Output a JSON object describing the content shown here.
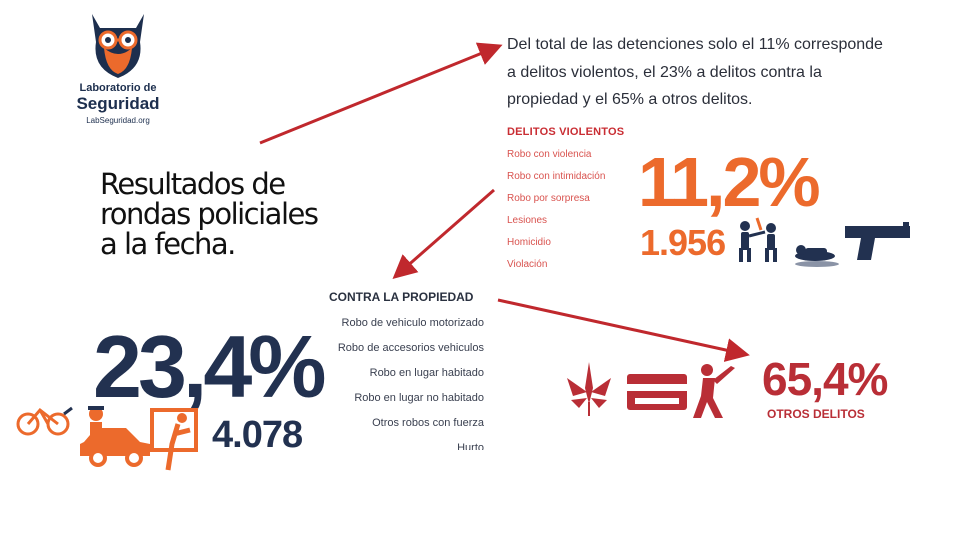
{
  "logo": {
    "line1": "Laboratorio de",
    "line2": "Seguridad",
    "line3": "LabSeguridad.org"
  },
  "title": {
    "line1": "Resultados de",
    "line2": "rondas policiales",
    "line3": "a la fecha."
  },
  "intro": {
    "line1": "Del total de las detenciones solo el 11% corresponde",
    "line2": "a delitos violentos, el 23% a delitos contra la",
    "line3": "propiedad y el 65% a otros delitos."
  },
  "violentos": {
    "heading": "DELITOS   VIOLENTOS",
    "items": [
      "Robo  con violencia",
      "Robo  con intimidación",
      "Robo  por sorpresa",
      "Lesiones",
      "Homicidio",
      "Violación"
    ],
    "percent": "11,2%",
    "count": "1.956"
  },
  "propiedad": {
    "heading": "CONTRA LA PROPIEDAD",
    "items": [
      "Robo de vehiculo motorizado",
      "Robo de accesorios vehiculos",
      "Robo  en lugar habitado",
      "Robo    en lugar no habitado",
      "Otros robos con fuerza",
      "Hurto"
    ],
    "percent": "23,4%",
    "count": "4.078"
  },
  "otros": {
    "percent": "65,4%",
    "label": "OTROS DELITOS"
  },
  "colors": {
    "orange": "#ec6a2c",
    "navy": "#223150",
    "red": "#b92e36",
    "arrow": "#c0282d"
  },
  "icons": [
    "owl-logo-icon",
    "fighting-people-icon",
    "victim-lying-icon",
    "handgun-icon",
    "bicycle-icon",
    "thief-icon",
    "car-icon",
    "window-break-icon",
    "cannabis-leaf-icon",
    "credit-card-icon",
    "attacker-knife-icon"
  ]
}
